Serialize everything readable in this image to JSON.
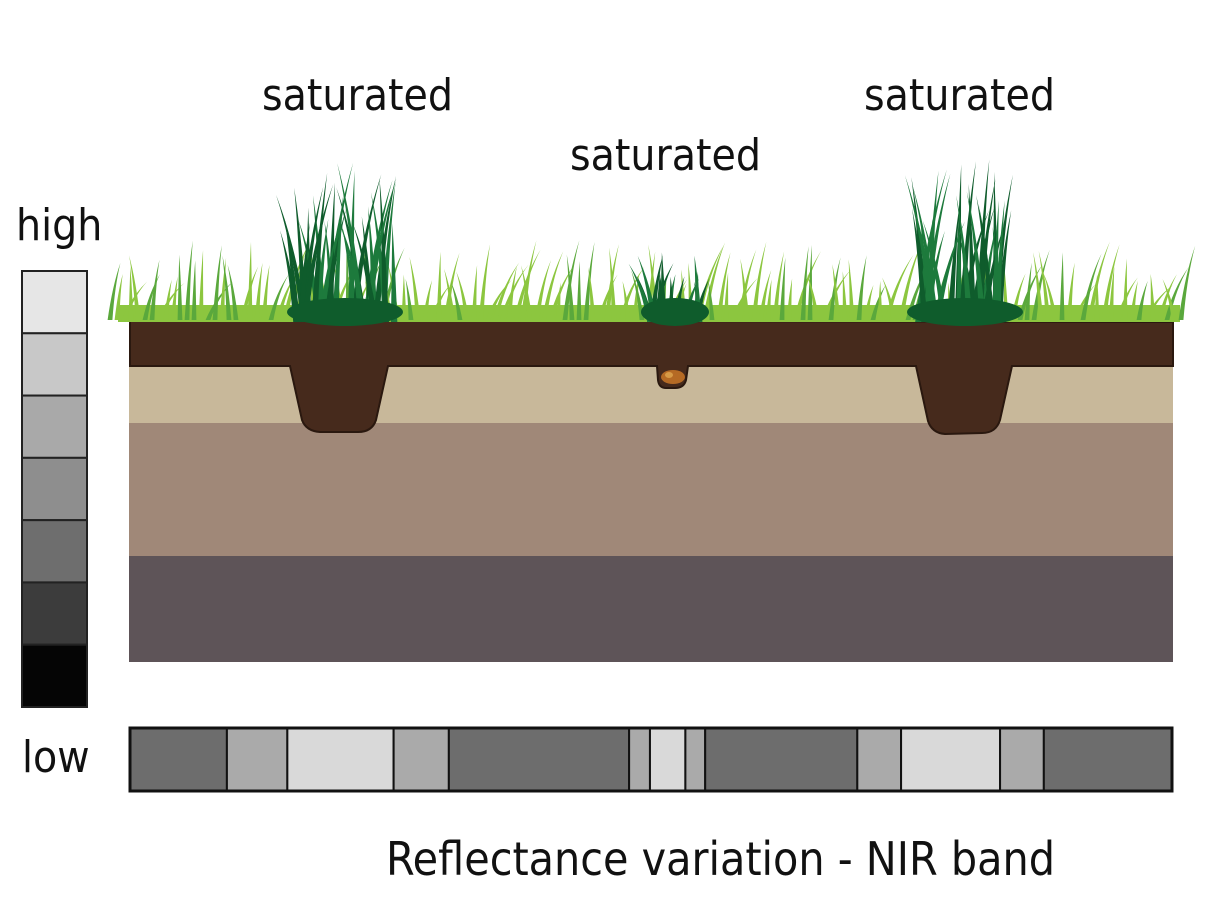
{
  "labels": {
    "saturated_left": "saturated",
    "saturated_middle": "saturated",
    "saturated_right": "saturated",
    "scale_high": "high",
    "scale_low": "low",
    "caption": "Reflectance variation - NIR band"
  },
  "legend_scale": {
    "shades": [
      "#e6e6e6",
      "#c8c8c8",
      "#a9a9a9",
      "#8e8e8e",
      "#6e6e6e",
      "#3c3c3c",
      "#050505"
    ]
  },
  "reflectance_strip": {
    "segments": [
      {
        "shade": "#6d6d6d",
        "width_pct": 9.3
      },
      {
        "shade": "#aaaaaa",
        "width_pct": 5.8
      },
      {
        "shade": "#d9d9d9",
        "width_pct": 10.2
      },
      {
        "shade": "#aaaaaa",
        "width_pct": 5.3
      },
      {
        "shade": "#6d6d6d",
        "width_pct": 17.3
      },
      {
        "shade": "#aaaaaa",
        "width_pct": 2.0
      },
      {
        "shade": "#d9d9d9",
        "width_pct": 3.4
      },
      {
        "shade": "#aaaaaa",
        "width_pct": 1.9
      },
      {
        "shade": "#6d6d6d",
        "width_pct": 14.6
      },
      {
        "shade": "#aaaaaa",
        "width_pct": 4.2
      },
      {
        "shade": "#d9d9d9",
        "width_pct": 9.5
      },
      {
        "shade": "#aaaaaa",
        "width_pct": 4.2
      },
      {
        "shade": "#6d6d6d",
        "width_pct": 12.3
      }
    ]
  },
  "colors": {
    "topsoil": "#462a1c",
    "subsoil_light": "#c8b89a",
    "subsoil_mid": "#a08878",
    "bedrock": "#5e5458",
    "grass_light": "#8cc63f",
    "grass_mid": "#5aa83c",
    "grass_dark": "#1d7a3c",
    "grass_darker": "#0f5c2c"
  }
}
